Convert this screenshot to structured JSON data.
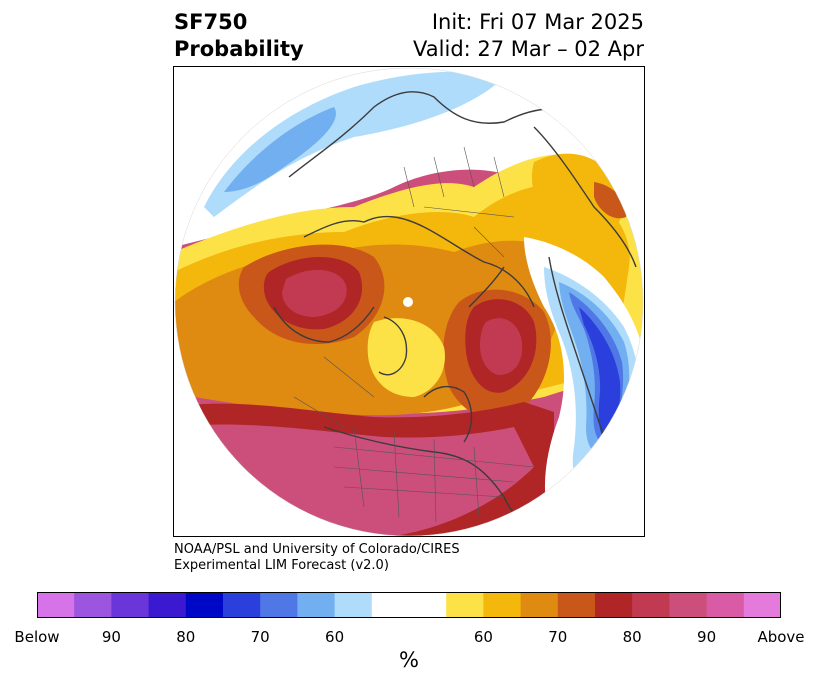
{
  "header": {
    "variable": "SF750",
    "subtitle": "Probability",
    "init": "Init: Fri 07 Mar 2025",
    "valid": "Valid: 27 Mar – 02 Apr"
  },
  "credit": {
    "line1": "NOAA/PSL and University of Colorado/CIRES",
    "line2": "Experimental LIM Forecast (v2.0)"
  },
  "colorbar": {
    "unit": "%",
    "colors": [
      "#d673e8",
      "#9b55de",
      "#6a36d9",
      "#3a19d1",
      "#0008c8",
      "#2a3fdc",
      "#4f77e5",
      "#72aff0",
      "#b0dcfb",
      "#ffffff",
      "#ffffff",
      "#fde247",
      "#f4b70b",
      "#df8a10",
      "#c9571a",
      "#b02525",
      "#c23a52",
      "#cc4e7a",
      "#d95ba6",
      "#e47adc"
    ],
    "ticks": [
      "Below",
      "90",
      "80",
      "70",
      "60",
      "60",
      "70",
      "80",
      "90",
      "Above"
    ]
  },
  "palette": {
    "blue_dark": "#2a3fdc",
    "blue_mid": "#4f77e5",
    "blue_light": "#72aff0",
    "blue_pale": "#b0dcfb",
    "yellow": "#fde247",
    "gold": "#f4b70b",
    "orange": "#df8a10",
    "rust": "#c9571a",
    "red": "#b02525",
    "crimson": "#c23a52",
    "rose": "#cc4e7a"
  }
}
